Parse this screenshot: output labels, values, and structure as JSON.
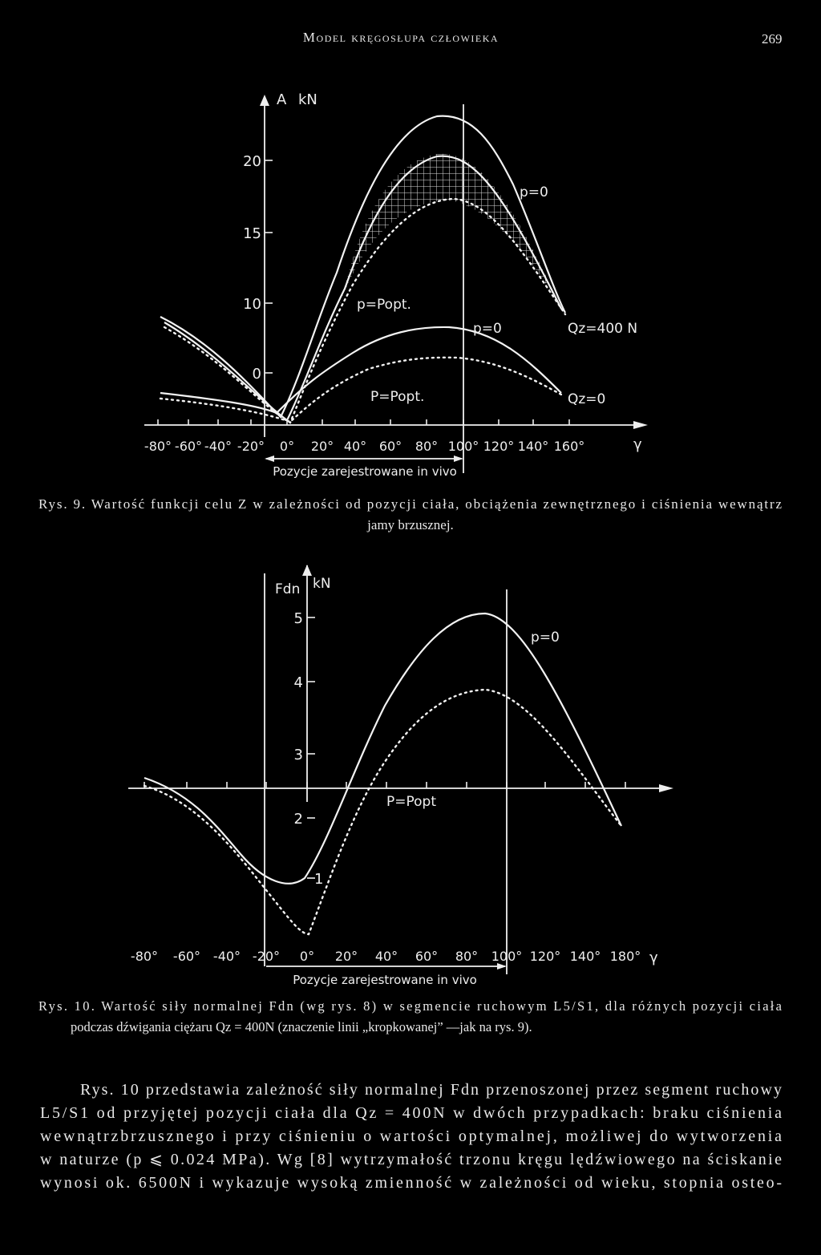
{
  "header": {
    "title": "Model kręgosłupa człowieka",
    "page": "269"
  },
  "figure1": {
    "y_label": "A",
    "y_unit": "kN",
    "yticks": [
      "20",
      "15",
      "10",
      "0"
    ],
    "xticks": [
      "-80°",
      "-60°",
      "-40°",
      "-20°",
      "0°",
      "20°",
      "40°",
      "60°",
      "80°",
      "100°",
      "120°",
      "140°",
      "160°"
    ],
    "x_symbol": "γ",
    "range_label": "Pozycje zarejestrowane in vivo",
    "annotations": [
      "p=0",
      "p=Popt.",
      "p=0",
      "Qz=400 N",
      "P=Popt.",
      "Qz=0"
    ],
    "caption": [
      "Rys. 9. Wartość funkcji celu Z w zależności od pozycji ciała, obciążenia zewnętrznego i ciśnienia wewnątrz",
      "jamy brzusznej."
    ]
  },
  "figure2": {
    "y_label": "Fdn",
    "y_unit": "kN",
    "yticks": [
      "5",
      "4",
      "3",
      "2",
      "1"
    ],
    "xticks": [
      "-80°",
      "-60°",
      "-40°",
      "-20°",
      "0°",
      "20°",
      "40°",
      "60°",
      "80°",
      "100°",
      "120°",
      "140°",
      "180°"
    ],
    "x_symbol": "γ",
    "range_label": "Pozycje zarejestrowane in vivo",
    "annotations": [
      "p=0",
      "P=Popt"
    ],
    "caption": [
      "Rys. 10. Wartość siły normalnej Fdn (wg rys. 8) w segmencie ruchowym L5/S1, dla różnych pozycji ciała",
      "podczas dźwigania ciężaru Qz = 400N (znaczenie linii „kropkowanej” —jak na rys. 9)."
    ]
  },
  "body": [
    "Rys. 10 przedstawia zależność siły normalnej Fdn przenoszonej przez segment ruchowy",
    "L5/S1 od przyjętej pozycji ciała dla Qz = 400N w dwóch przypadkach: braku ciśnienia",
    "wewnątrzbrzusznego i przy ciśnieniu o wartości optymalnej, możliwej do wytworzenia",
    "w naturze (p ⩽ 0.024 MPa). Wg [8] wytrzymałość trzonu kręgu lędźwiowego na ściskanie",
    "wynosi ok. 6500N i wykazuje wysoką zmienność w zależności od wieku, stopnia osteo-"
  ]
}
